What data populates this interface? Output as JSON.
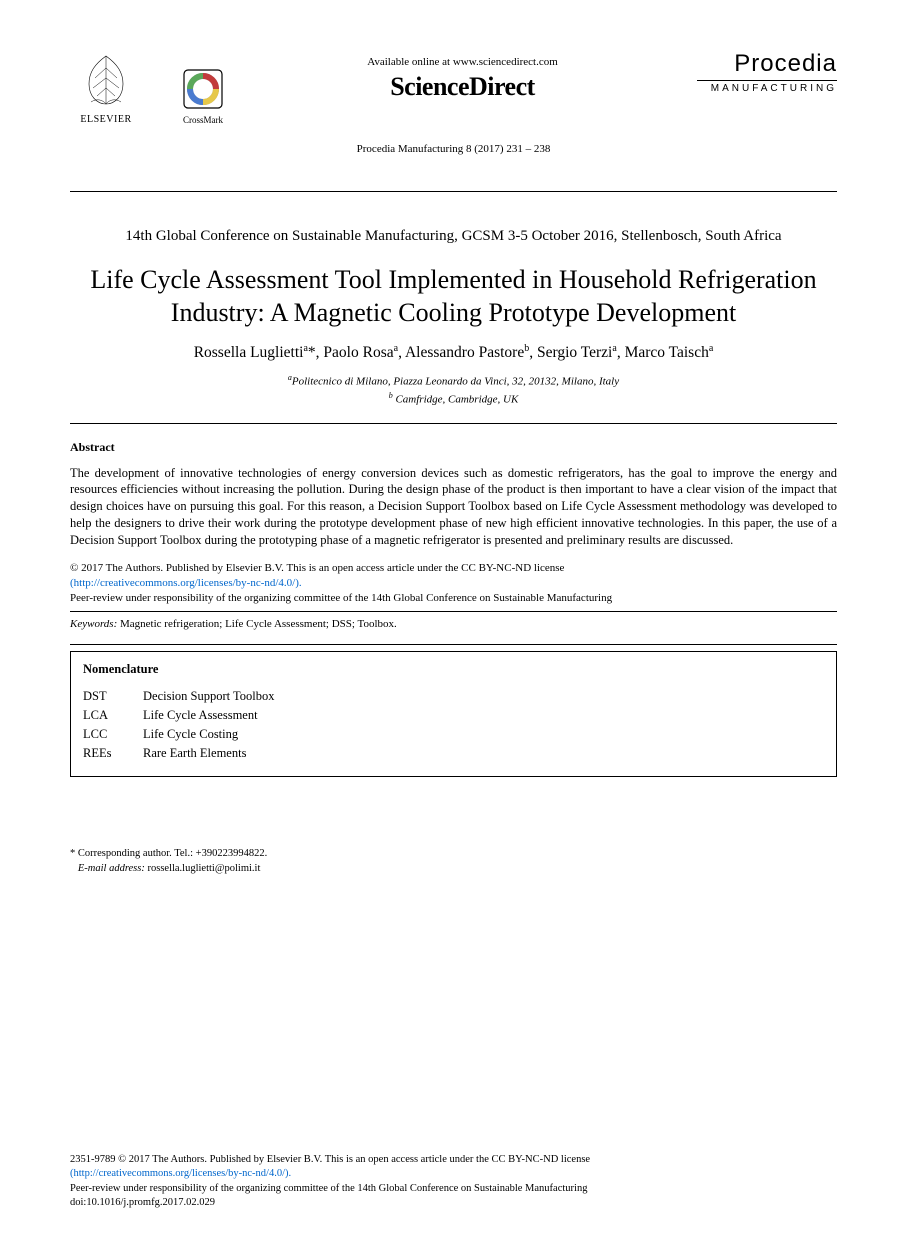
{
  "header": {
    "elsevier": "ELSEVIER",
    "crossmark": "CrossMark",
    "avail_online": "Available online at www.sciencedirect.com",
    "sciencedirect": "ScienceDirect",
    "procedia": "Procedia",
    "procedia_sub": "MANUFACTURING",
    "citation": "Procedia Manufacturing 8 (2017) 231 – 238"
  },
  "conference": "14th Global Conference on Sustainable Manufacturing, GCSM 3-5 October 2016, Stellenbosch, South Africa",
  "title": "Life Cycle Assessment Tool Implemented in Household Refrigeration Industry: A Magnetic Cooling Prototype Development",
  "authors_html": "Rossella Luglietti<sup>a</sup>*, Paolo Rosa<sup>a</sup>, Alessandro Pastore<sup>b</sup>, Sergio Terzi<sup>a</sup>, Marco Taisch<sup>a</sup>",
  "affiliations": [
    {
      "sup": "a",
      "text": "Politecnico di Milano, Piazza Leonardo da Vinci, 32, 20132, Milano, Italy"
    },
    {
      "sup": "b",
      "text": " Camfridge, Cambridge, UK"
    }
  ],
  "abstract": {
    "heading": "Abstract",
    "text": "The development of innovative technologies of energy conversion devices such as domestic refrigerators, has the goal to improve the energy and resources efficiencies without increasing the pollution. During the design phase of the product is then important to have a clear vision of the impact that design choices have on pursuing this goal. For this reason, a Decision Support Toolbox based on Life Cycle Assessment methodology was developed to help the designers to drive their work during the prototype development phase of new high efficient innovative technologies. In this paper, the use of a Decision Support Toolbox during the prototyping phase of a magnetic refrigerator is presented and preliminary results are discussed."
  },
  "license": {
    "line1": "© 2017 The Authors. Published by Elsevier B.V. This is an open access article under the CC BY-NC-ND license",
    "link_text": "(http://creativecommons.org/licenses/by-nc-nd/4.0/).",
    "line2": "Peer-review under responsibility of the organizing committee of the 14th Global Conference on Sustainable Manufacturing"
  },
  "keywords": {
    "label": "Keywords:",
    "text": " Magnetic refrigeration; Life Cycle Assessment; DSS; Toolbox."
  },
  "nomenclature": {
    "heading": "Nomenclature",
    "items": [
      {
        "abbr": "DST",
        "def": "Decision Support Toolbox"
      },
      {
        "abbr": "LCA",
        "def": "Life Cycle Assessment"
      },
      {
        "abbr": "LCC",
        "def": "Life Cycle Costing"
      },
      {
        "abbr": "REEs",
        "def": "Rare Earth Elements"
      }
    ]
  },
  "corresponding": {
    "line1": "* Corresponding author. Tel.: +390223994822.",
    "email_label": "E-mail address:",
    "email": " rossella.luglietti@polimi.it"
  },
  "footer": {
    "line1": "2351-9789 © 2017 The Authors. Published by Elsevier B.V. This is an open access article under the CC BY-NC-ND license",
    "link_text": "(http://creativecommons.org/licenses/by-nc-nd/4.0/).",
    "line2": "Peer-review under responsibility of the organizing committee of the 14th Global Conference on Sustainable Manufacturing",
    "doi": "doi:10.1016/j.promfg.2017.02.029"
  },
  "colors": {
    "text": "#000000",
    "link": "#0066cc",
    "background": "#ffffff",
    "rule": "#000000"
  }
}
